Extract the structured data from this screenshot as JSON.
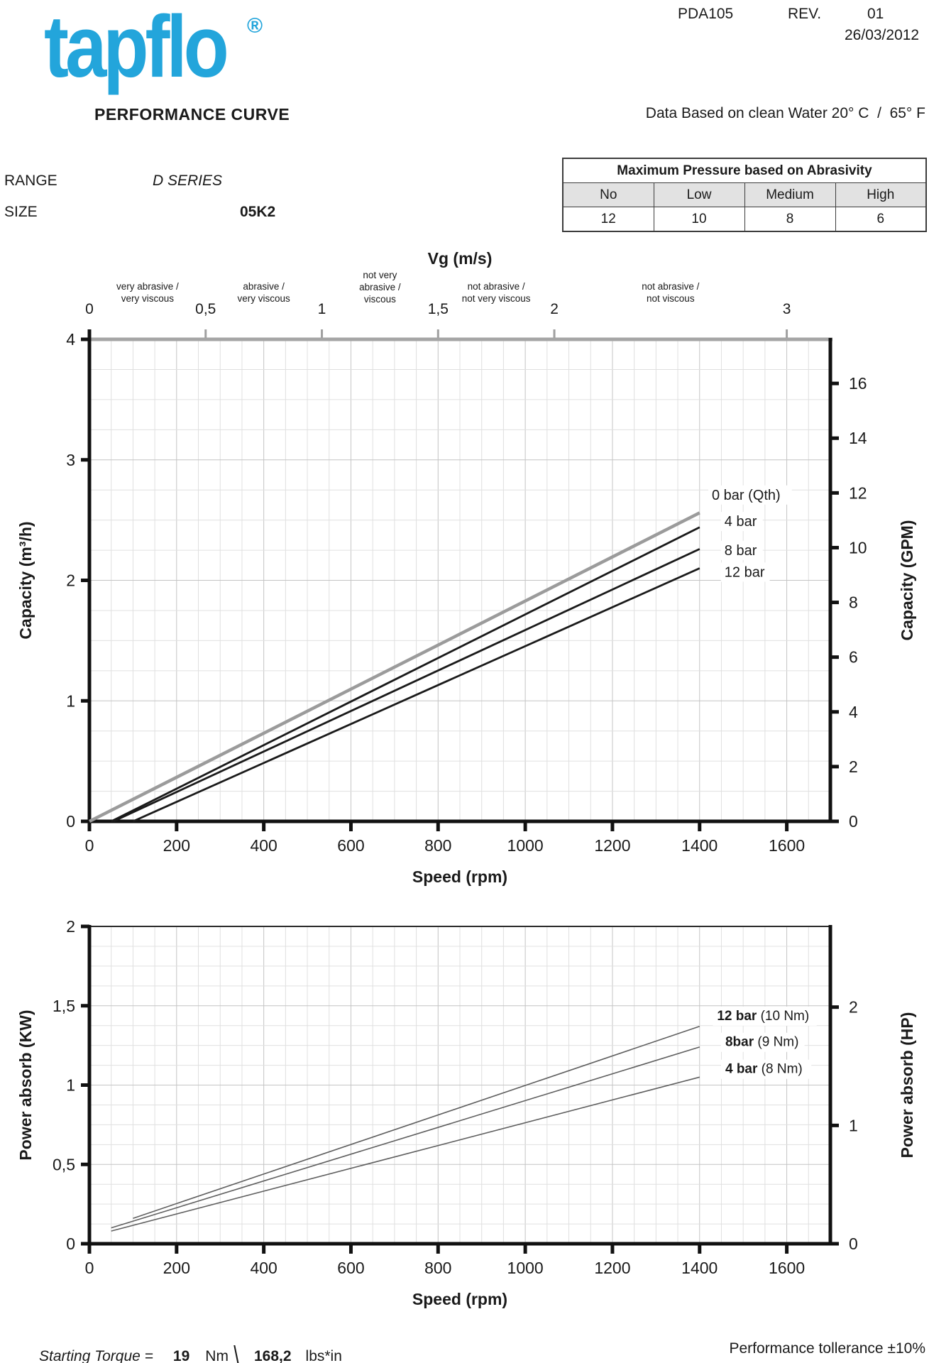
{
  "header": {
    "logo_text": "tapflo",
    "registered_mark": "®",
    "doc_code": "PDA105",
    "rev_label": "REV.",
    "rev_value": "01",
    "date": "26/03/2012",
    "title": "PERFORMANCE CURVE",
    "data_note": "Data Based on clean Water 20° C  /  65° F"
  },
  "meta": {
    "range_label": "RANGE",
    "range_value": "D SERIES",
    "size_label": "SIZE",
    "size_value": "05K2"
  },
  "abrasivity_table": {
    "title": "Maximum Pressure based on Abrasivity",
    "columns": [
      "No",
      "Low",
      "Medium",
      "High"
    ],
    "values": [
      "12",
      "10",
      "8",
      "6"
    ]
  },
  "footer": {
    "starting_torque_label": "Starting Torque =",
    "torque_nm": "19",
    "nm_unit": "Nm",
    "separator": "\\",
    "torque_lbs": "168,2",
    "lbs_unit": "lbs*in",
    "tolerance": "Performance tollerance ±10%"
  },
  "colors": {
    "logo_cyan": "#23A5DB",
    "axis_black": "#111111",
    "top_axis_gray": "#a5a5a5",
    "grid_minor": "#e0e0e0",
    "grid_major": "#c4c4c4",
    "series_qth_gray": "#9b9b9b",
    "series_black": "#1a1a1a",
    "power_line_gray": "#5f5f5f",
    "table_header_bg": "#e2e2e2"
  },
  "chart_data": [
    {
      "type": "line",
      "title": "Capacity vs Speed",
      "x_axis": {
        "label": "Speed (rpm)",
        "max": 1700,
        "minor_step": 50,
        "major_step": 200,
        "ticks": [
          {
            "v": 0,
            "label": "0"
          },
          {
            "v": 200,
            "label": "200"
          },
          {
            "v": 400,
            "label": "400"
          },
          {
            "v": 600,
            "label": "600"
          },
          {
            "v": 800,
            "label": "800"
          },
          {
            "v": 1000,
            "label": "1000"
          },
          {
            "v": 1200,
            "label": "1200"
          },
          {
            "v": 1400,
            "label": "1400"
          },
          {
            "v": 1600,
            "label": "1600"
          }
        ]
      },
      "y_left": {
        "label": "Capacity (m³/h)",
        "max": 4,
        "minor_step": 0.25,
        "ticks": [
          {
            "v": 0,
            "label": "0"
          },
          {
            "v": 1,
            "label": "1"
          },
          {
            "v": 2,
            "label": "2"
          },
          {
            "v": 3,
            "label": "3"
          },
          {
            "v": 4,
            "label": "4"
          }
        ]
      },
      "y_right": {
        "label": "Capacity (GPM)",
        "gpm_per_m3h": 4.4029,
        "ticks": [
          {
            "v": 0,
            "label": "0"
          },
          {
            "v": 2,
            "label": "2"
          },
          {
            "v": 4,
            "label": "4"
          },
          {
            "v": 6,
            "label": "6"
          },
          {
            "v": 8,
            "label": "8"
          },
          {
            "v": 10,
            "label": "10"
          },
          {
            "v": 12,
            "label": "12"
          },
          {
            "v": 14,
            "label": "14"
          },
          {
            "v": 16,
            "label": "16"
          }
        ]
      },
      "top_axis": {
        "label": "Vg (m/s)",
        "rpm_per_unit": 533.33,
        "ticks": [
          {
            "v": 0,
            "label": "0"
          },
          {
            "v": 0.5,
            "label": "0,5"
          },
          {
            "v": 1,
            "label": "1"
          },
          {
            "v": 1.5,
            "label": "1,5"
          },
          {
            "v": 2,
            "label": "2"
          },
          {
            "v": 3,
            "label": "3"
          }
        ],
        "categories": [
          {
            "center": 0.25,
            "lines": [
              "very abrasive /",
              "very viscous"
            ]
          },
          {
            "center": 0.75,
            "lines": [
              "abrasive /",
              "very viscous"
            ]
          },
          {
            "center": 1.25,
            "lines": [
              "not very",
              "abrasive /",
              "viscous"
            ]
          },
          {
            "center": 1.75,
            "lines": [
              "not  abrasive /",
              "not very viscous"
            ]
          },
          {
            "center": 2.5,
            "lines": [
              "not  abrasive /",
              "not  viscous"
            ]
          }
        ]
      },
      "series": [
        {
          "name": "0 bar (Qth)",
          "color": "#9b9b9b",
          "width": 4.5,
          "points": [
            [
              0,
              0
            ],
            [
              1400,
              2.56
            ]
          ]
        },
        {
          "name": "4 bar",
          "color": "#1a1a1a",
          "width": 2.8,
          "points": [
            [
              50,
              0
            ],
            [
              1400,
              2.44
            ]
          ]
        },
        {
          "name": "8 bar",
          "color": "#1a1a1a",
          "width": 2.8,
          "points": [
            [
              55,
              0
            ],
            [
              1400,
              2.26
            ]
          ]
        },
        {
          "name": "12 bar",
          "color": "#1a1a1a",
          "width": 2.8,
          "points": [
            [
              100,
              0
            ],
            [
              1400,
              2.1
            ]
          ]
        }
      ],
      "legend": [
        {
          "text": "0 bar (Qth)",
          "x": 1428,
          "y": 2.67
        },
        {
          "text": "4 bar",
          "x": 1457,
          "y": 2.45
        },
        {
          "text": "8 bar",
          "x": 1457,
          "y": 2.21
        },
        {
          "text": "12 bar",
          "x": 1457,
          "y": 2.03
        }
      ]
    },
    {
      "type": "line",
      "title": "Power absorbed vs Speed",
      "x_axis": {
        "label": "Speed (rpm)",
        "max": 1700,
        "minor_step": 50,
        "major_step": 200,
        "ticks": [
          {
            "v": 0,
            "label": "0"
          },
          {
            "v": 200,
            "label": "200"
          },
          {
            "v": 400,
            "label": "400"
          },
          {
            "v": 600,
            "label": "600"
          },
          {
            "v": 800,
            "label": "800"
          },
          {
            "v": 1000,
            "label": "1000"
          },
          {
            "v": 1200,
            "label": "1200"
          },
          {
            "v": 1400,
            "label": "1400"
          },
          {
            "v": 1600,
            "label": "1600"
          }
        ]
      },
      "y_left": {
        "label": "Power absorb (KW)",
        "max": 2,
        "minor_step": 0.125,
        "ticks": [
          {
            "v": 0,
            "label": "0"
          },
          {
            "v": 0.5,
            "label": "0,5"
          },
          {
            "v": 1,
            "label": "1"
          },
          {
            "v": 1.5,
            "label": "1,5"
          },
          {
            "v": 2,
            "label": "2"
          }
        ]
      },
      "y_right": {
        "label": "Power absorb (HP)",
        "kw_per_hp": 0.7457,
        "ticks": [
          {
            "v": 0,
            "label": "0"
          },
          {
            "v": 1,
            "label": "1"
          },
          {
            "v": 2,
            "label": "2"
          }
        ]
      },
      "series": [
        {
          "name": "12 bar (10 Nm)",
          "color": "#5f5f5f",
          "width": 1.6,
          "points": [
            [
              100,
              0.16
            ],
            [
              1400,
              1.37
            ]
          ]
        },
        {
          "name": "8bar (9 Nm)",
          "color": "#5f5f5f",
          "width": 1.6,
          "points": [
            [
              50,
              0.1
            ],
            [
              1400,
              1.24
            ]
          ]
        },
        {
          "name": "4 bar (8 Nm)",
          "color": "#5f5f5f",
          "width": 1.6,
          "points": [
            [
              50,
              0.08
            ],
            [
              1400,
              1.05
            ]
          ]
        }
      ],
      "legend": [
        {
          "bold": "12 bar",
          "rest": " (10 Nm)",
          "x": 1440,
          "y": 1.41
        },
        {
          "bold": "8bar",
          "rest": " (9 Nm)",
          "x": 1459,
          "y": 1.245
        },
        {
          "bold": "4 bar",
          "rest": " (8 Nm)",
          "x": 1459,
          "y": 1.075
        }
      ]
    }
  ]
}
